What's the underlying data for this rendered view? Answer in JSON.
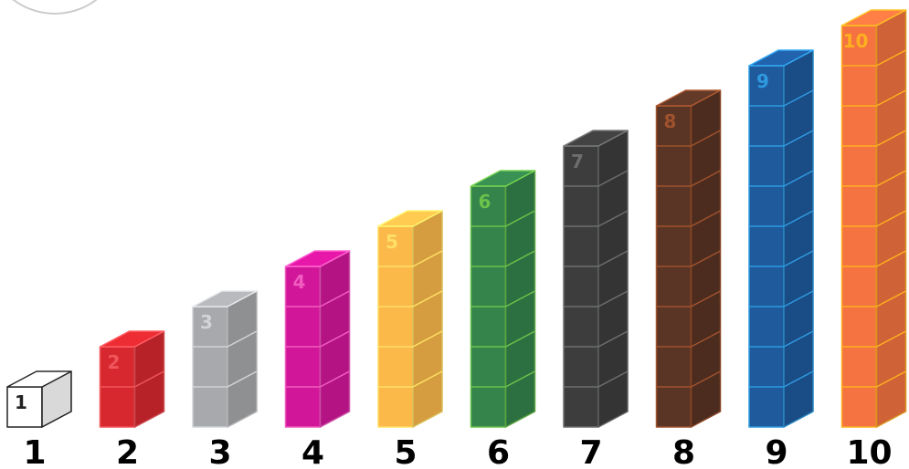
{
  "rods": [
    {
      "value": 1,
      "color": "#ffffff",
      "stroke": "#222222"
    },
    {
      "value": 2,
      "color": "#d7282f",
      "stroke": "#f0565c"
    },
    {
      "value": 3,
      "color": "#a7a9ac",
      "stroke": "#d2d3d5"
    },
    {
      "value": 4,
      "color": "#d2169a",
      "stroke": "#f05cc0"
    },
    {
      "value": 5,
      "color": "#fbb94a",
      "stroke": "#ffe066"
    },
    {
      "value": 6,
      "color": "#34844c",
      "stroke": "#6cc24a"
    },
    {
      "value": 7,
      "color": "#3d3d3d",
      "stroke": "#6d6e70"
    },
    {
      "value": 8,
      "color": "#5a3424",
      "stroke": "#a0522d"
    },
    {
      "value": 9,
      "color": "#1e5a9c",
      "stroke": "#2f9ae0"
    },
    {
      "value": 10,
      "color": "#f47340",
      "stroke": "#ffb020"
    }
  ]
}
